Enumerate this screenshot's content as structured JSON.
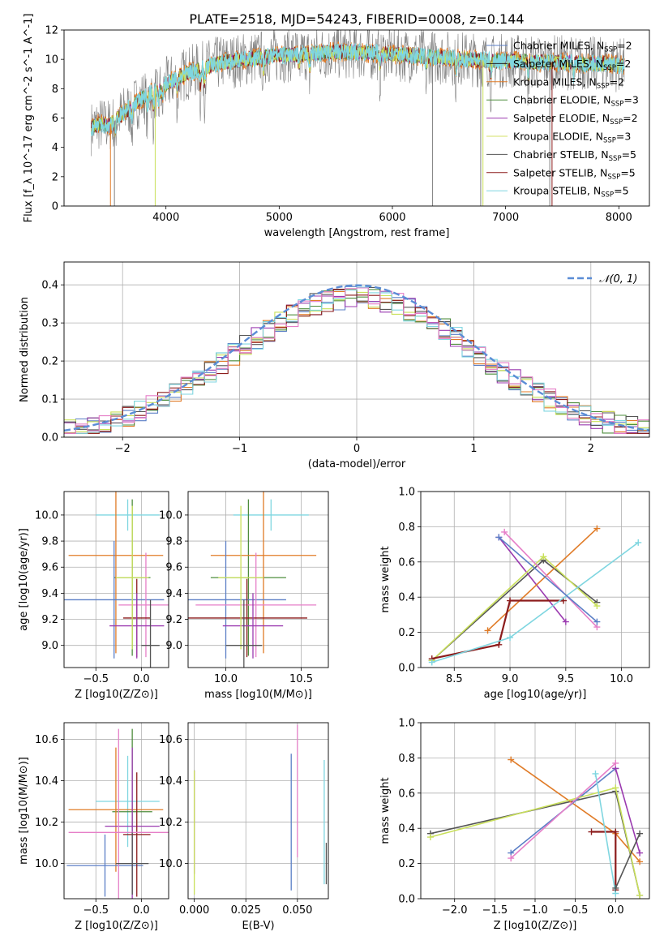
{
  "title": "PLATE=2518, MJD=54243, FIBERID=0008, z=0.144",
  "chart_data": [
    {
      "type": "line",
      "xlabel": "wavelength [Angstrom, rest frame]",
      "ylabel": "Flux [f_λ 10^-17 erg cm^-2 s^-1 A^-1]",
      "xlim": [
        3100,
        8270
      ],
      "ylim": [
        0,
        12
      ],
      "xticks": [
        "4000",
        "5000",
        "6000",
        "7000",
        "8000"
      ],
      "yticks": [
        "0",
        "2",
        "4",
        "6",
        "8",
        "10",
        "12"
      ],
      "grid": false,
      "legend_position": "right",
      "spectrum_profile": {
        "x": [
          3340,
          3400,
          3500,
          3600,
          3700,
          3800,
          3900,
          4000,
          4100,
          4200,
          4300,
          4400,
          4500,
          4700,
          4900,
          5100,
          5300,
          5500,
          5700,
          5900,
          6100,
          6300,
          6500,
          6700,
          6900,
          7100,
          7300,
          7500,
          7700,
          7900,
          8050
        ],
        "y": [
          5.3,
          5.6,
          5.5,
          6.2,
          6.8,
          7.4,
          7.8,
          8.3,
          8.7,
          9.1,
          9.3,
          9.6,
          9.8,
          10.0,
          10.2,
          10.3,
          10.4,
          10.5,
          10.5,
          10.4,
          10.3,
          10.2,
          10.1,
          10.0,
          9.9,
          9.9,
          9.8,
          9.8,
          9.7,
          9.7,
          9.6
        ]
      }
    },
    {
      "type": "bar",
      "xlabel": "(data-model)/error",
      "ylabel": "Normed distribution",
      "xlim": [
        -2.5,
        2.5
      ],
      "ylim": [
        0,
        0.46
      ],
      "xticks": [
        "−2",
        "−1",
        "0",
        "1",
        "2"
      ],
      "yticks": [
        "0.0",
        "0.1",
        "0.2",
        "0.3",
        "0.4"
      ],
      "grid": true,
      "legend_position": "upper right",
      "legend_label": "𝒩(0, 1)",
      "bin_width": 0.1
    },
    {
      "type": "scatter",
      "xlabel": "Z [log10(Z/Z⊙)]",
      "ylabel": "age [log10(age/yr)]",
      "xlim": [
        -0.85,
        0.3
      ],
      "ylim": [
        8.83,
        10.18
      ],
      "xticks": [
        "−0.5",
        "0.0"
      ],
      "yticks": [
        "9.0",
        "9.2",
        "9.4",
        "9.6",
        "9.8",
        "10.0"
      ],
      "grid": true,
      "points": [
        {
          "x": -0.15,
          "y": 10.0,
          "xerr": 0.35,
          "yerr": 0.12
        },
        {
          "x": -0.1,
          "y": 9.52,
          "xerr": 0.2,
          "yerr": 0.6
        },
        {
          "x": -0.28,
          "y": 9.69,
          "xerr": 0.52,
          "yerr": 0.75
        },
        {
          "x": -0.3,
          "y": 9.35,
          "xerr": 0.55,
          "yerr": 0.45
        },
        {
          "x": 0.05,
          "y": 9.31,
          "xerr": 0.3,
          "yerr": 0.4
        },
        {
          "x": -0.05,
          "y": 9.21,
          "xerr": 0.15,
          "yerr": 0.3
        },
        {
          "x": -0.05,
          "y": 9.15,
          "xerr": 0.3,
          "yerr": 0.25
        },
        {
          "x": -0.1,
          "y": 9.52,
          "xerr": 0.18,
          "yerr": 0.55
        },
        {
          "x": 0.1,
          "y": 9.0,
          "xerr": 0.1,
          "yerr": 0.35
        }
      ]
    },
    {
      "type": "scatter",
      "xlabel": "mass [log10(M/M⊙)]",
      "xlim": [
        9.75,
        10.68
      ],
      "ylim": [
        8.83,
        10.18
      ],
      "xticks": [
        "10.0",
        "10.5"
      ],
      "yticks": [
        "9.0",
        "9.2",
        "9.4",
        "9.6",
        "9.8",
        "10.0"
      ],
      "grid": true,
      "points": [
        {
          "x": 10.3,
          "y": 10.0,
          "xerr": 0.25,
          "yerr": 0.12
        },
        {
          "x": 10.15,
          "y": 9.52,
          "xerr": 0.25,
          "yerr": 0.6
        },
        {
          "x": 10.25,
          "y": 9.69,
          "xerr": 0.35,
          "yerr": 0.75
        },
        {
          "x": 10.0,
          "y": 9.35,
          "xerr": 0.4,
          "yerr": 0.45
        },
        {
          "x": 10.2,
          "y": 9.31,
          "xerr": 0.4,
          "yerr": 0.4
        },
        {
          "x": 10.14,
          "y": 9.21,
          "xerr": 0.4,
          "yerr": 0.3
        },
        {
          "x": 10.18,
          "y": 9.15,
          "xerr": 0.2,
          "yerr": 0.25
        },
        {
          "x": 10.1,
          "y": 9.52,
          "xerr": 0.15,
          "yerr": 0.55
        },
        {
          "x": 10.12,
          "y": 9.0,
          "xerr": 0.12,
          "yerr": 0.35
        }
      ]
    },
    {
      "type": "line",
      "xlabel": "age [log10(age/yr)]",
      "ylabel": "mass weight",
      "xlim": [
        8.2,
        10.25
      ],
      "ylim": [
        0,
        1
      ],
      "xticks": [
        "8.5",
        "9.0",
        "9.5",
        "10.0"
      ],
      "yticks": [
        "0.0",
        "0.2",
        "0.4",
        "0.6",
        "0.8",
        "1.0"
      ],
      "grid": true,
      "series": [
        {
          "x": [
            8.3,
            9.3,
            9.78
          ],
          "y": [
            0.04,
            0.61,
            0.37
          ]
        },
        {
          "x": [
            8.9,
            9.5
          ],
          "y": [
            0.74,
            0.26
          ]
        },
        {
          "x": [
            8.8,
            9.78
          ],
          "y": [
            0.21,
            0.79
          ]
        },
        {
          "x": [
            8.3,
            9.3,
            9.78
          ],
          "y": [
            0.04,
            0.63,
            0.35
          ]
        },
        {
          "x": [
            8.95,
            9.78
          ],
          "y": [
            0.77,
            0.23
          ]
        },
        {
          "x": [
            8.3,
            8.9,
            9.0,
            9.48
          ],
          "y": [
            0.05,
            0.13,
            0.38,
            0.38
          ]
        },
        {
          "x": [
            8.3,
            9.0,
            10.15
          ],
          "y": [
            0.03,
            0.17,
            0.71
          ]
        },
        {
          "x": [
            8.9,
            9.78
          ],
          "y": [
            0.74,
            0.26
          ]
        }
      ]
    },
    {
      "type": "scatter",
      "xlabel": "Z [log10(Z/Z⊙)]",
      "ylabel": "mass [log10(M/M⊙)]",
      "xlim": [
        -0.85,
        0.3
      ],
      "ylim": [
        9.83,
        10.68
      ],
      "xticks": [
        "−0.5",
        "0.0"
      ],
      "yticks": [
        "10.0",
        "10.2",
        "10.4",
        "10.6"
      ],
      "grid": true,
      "points": [
        {
          "x": -0.15,
          "y": 10.3,
          "xerr": 0.35,
          "yerr": 0.22
        },
        {
          "x": -0.1,
          "y": 10.25,
          "xerr": 0.22,
          "yerr": 0.4
        },
        {
          "x": -0.28,
          "y": 10.26,
          "xerr": 0.52,
          "yerr": 0.3
        },
        {
          "x": -0.4,
          "y": 9.99,
          "xerr": 0.42,
          "yerr": 0.15
        },
        {
          "x": -0.1,
          "y": 10.18,
          "xerr": 0.3,
          "yerr": 0.38
        },
        {
          "x": -0.05,
          "y": 10.14,
          "xerr": 0.15,
          "yerr": 0.3
        },
        {
          "x": -0.25,
          "y": 10.15,
          "xerr": 0.55,
          "yerr": 0.5
        },
        {
          "x": -0.1,
          "y": 10.0,
          "xerr": 0.18,
          "yerr": 0.15
        }
      ]
    },
    {
      "type": "scatter",
      "xlabel": "E(B-V)",
      "xlim": [
        -0.003,
        0.065
      ],
      "ylim": [
        9.83,
        10.68
      ],
      "xticks": [
        "0.000",
        "0.025",
        "0.050"
      ],
      "yticks": [
        "10.0",
        "10.2",
        "10.4",
        "10.6"
      ],
      "grid": true,
      "points": [
        {
          "x": 0.0,
          "y": 10.2,
          "yerr": 0.25
        },
        {
          "x": 0.0,
          "y": 10.15,
          "yerr": 0.3
        },
        {
          "x": 0.047,
          "y": 10.2,
          "yerr": 0.33
        },
        {
          "x": 0.05,
          "y": 10.35,
          "yerr": 0.32
        },
        {
          "x": 0.063,
          "y": 10.2,
          "yerr": 0.3
        },
        {
          "x": 0.064,
          "y": 10.0,
          "yerr": 0.1
        }
      ]
    },
    {
      "type": "line",
      "xlabel": "Z [log10(Z/Z⊙)]",
      "ylabel": "mass weight",
      "xlim": [
        -2.42,
        0.42
      ],
      "ylim": [
        0,
        1
      ],
      "xticks": [
        "−2.0",
        "−1.5",
        "−1.0",
        "−0.5",
        "0.0"
      ],
      "yticks": [
        "0.0",
        "0.2",
        "0.4",
        "0.6",
        "0.8",
        "1.0"
      ],
      "grid": true,
      "series": [
        {
          "x": [
            -2.3,
            0.0,
            0.3
          ],
          "y": [
            0.37,
            0.61,
            0.02
          ]
        },
        {
          "x": [
            -1.3,
            0.0,
            0.3
          ],
          "y": [
            0.79,
            0.37,
            0.21
          ]
        },
        {
          "x": [
            -1.3,
            0.0
          ],
          "y": [
            0.26,
            0.74
          ]
        },
        {
          "x": [
            0.0,
            0.3
          ],
          "y": [
            0.74,
            0.26
          ]
        },
        {
          "x": [
            -2.3,
            0.0,
            0.3
          ],
          "y": [
            0.35,
            0.63,
            0.02
          ]
        },
        {
          "x": [
            -1.3,
            0.0
          ],
          "y": [
            0.23,
            0.77
          ]
        },
        {
          "x": [
            -0.3,
            0.0,
            0.0
          ],
          "y": [
            0.38,
            0.38,
            0.05
          ]
        },
        {
          "x": [
            -0.25,
            0.0
          ],
          "y": [
            0.71,
            0.03
          ]
        },
        {
          "x": [
            0.0,
            0.3
          ],
          "y": [
            0.06,
            0.37
          ]
        }
      ]
    }
  ],
  "legend": [
    {
      "text": "Chabrier MILES, N",
      "sub": "SSP",
      "suffix": "=2",
      "color": "#5b7fc6"
    },
    {
      "text": "Salpeter MILES, N",
      "sub": "SSP",
      "suffix": "=2",
      "color": "#222222"
    },
    {
      "text": "Kroupa MILES, N",
      "sub": "SSP",
      "suffix": "=2",
      "color": "#e07b27"
    },
    {
      "text": "Chabrier ELODIE, N",
      "sub": "SSP",
      "suffix": "=3",
      "color": "#4e8d3d"
    },
    {
      "text": "Salpeter ELODIE, N",
      "sub": "SSP",
      "suffix": "=2",
      "color": "#9b3bb0"
    },
    {
      "text": "Kroupa ELODIE, N",
      "sub": "SSP",
      "suffix": "=3",
      "color": "#d6e067"
    },
    {
      "text": "Chabrier STELIB, N",
      "sub": "SSP",
      "suffix": "=5",
      "color": "#555555"
    },
    {
      "text": "Salpeter STELIB, N",
      "sub": "SSP",
      "suffix": "=5",
      "color": "#8c1c1c"
    },
    {
      "text": "Kroupa STELIB, N",
      "sub": "SSP",
      "suffix": "=5",
      "color": "#7fd6e0"
    }
  ],
  "colors": {
    "blue": "#5b7fc6",
    "orange": "#e07b27",
    "green": "#4e8d3d",
    "purple": "#9b3bb0",
    "yellowgreen": "#c9e05a",
    "gray": "#555555",
    "darkred": "#8c1c1c",
    "cyan": "#7fd6e0",
    "pink": "#e67fc8",
    "spectrum_gray": "#808080",
    "gaussian": "#5b8dd6"
  }
}
